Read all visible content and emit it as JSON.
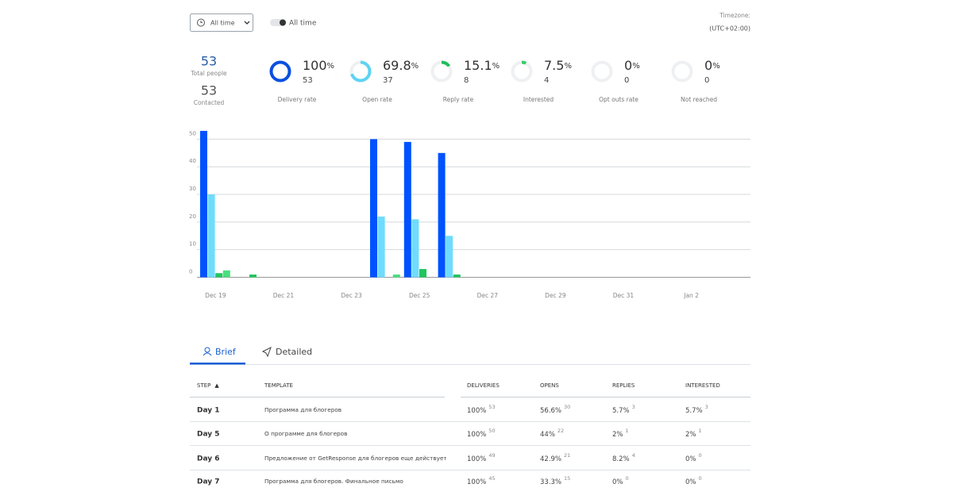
{
  "filters": {
    "period": "All time",
    "toggle_label": "All time",
    "timezone_label": "Timezone:",
    "timezone": "(UTC+02:00)"
  },
  "summary": [
    {
      "value": 53,
      "label": "Total people"
    },
    {
      "value": 53,
      "label": "Contacted"
    }
  ],
  "rates": {
    "unit": "%",
    "items": [
      {
        "percent": 100,
        "count": 53,
        "label": "Delivery rate",
        "color": "#0a4fe0"
      },
      {
        "percent": 69.8,
        "count": 37,
        "label": "Open rate",
        "color": "#5ed3f3"
      },
      {
        "percent": 15.1,
        "count": 8,
        "label": "Reply rate",
        "color": "#1fbf5a"
      },
      {
        "percent": 7.5,
        "count": 4,
        "label": "Interested",
        "color": "#3ec96a"
      },
      {
        "percent": 0,
        "count": 0,
        "label": "Opt outs rate",
        "color": "#9aa0a6"
      },
      {
        "percent": 0,
        "count": 0,
        "label": "Not reached",
        "color": "#9aa0a6"
      }
    ]
  },
  "chart_data": {
    "type": "bar",
    "categories": [
      "Dec 19",
      null,
      "Dec 21",
      null,
      "Dec 23",
      null,
      "Dec 25",
      null,
      "Dec 27",
      null,
      "Dec 29",
      null,
      "Dec 31",
      null,
      "Jan 2",
      null
    ],
    "series": [
      {
        "color": "#0052ff",
        "values": [
          53,
          0,
          0,
          0,
          0,
          50,
          49,
          45,
          0,
          0,
          0,
          0,
          0,
          0,
          0,
          0
        ]
      },
      {
        "color": "#6fdcff",
        "values": [
          30,
          0,
          0,
          0,
          0,
          22,
          21,
          15,
          0,
          0,
          0,
          0,
          0,
          0,
          0,
          0
        ]
      },
      {
        "color": "#22c55e",
        "values": [
          1.5,
          1,
          0,
          0,
          0,
          0,
          3,
          1,
          0,
          0,
          0,
          0,
          0,
          0,
          0,
          0
        ]
      },
      {
        "color": "#4ade80",
        "values": [
          2.5,
          0,
          0,
          0,
          0,
          1,
          0,
          0,
          0,
          0,
          0,
          0,
          0,
          0,
          0,
          0
        ]
      }
    ],
    "ylim": [
      0,
      55
    ],
    "yticks": [
      0,
      10,
      20,
      30,
      40,
      50
    ],
    "grid": true
  },
  "tabs": [
    "Brief",
    "Detailed"
  ],
  "table": {
    "sort_indicator": "▲",
    "columns": [
      "STEP",
      "TEMPLATE",
      "DELIVERIES",
      "OPENS",
      "REPLIES",
      "INTERESTED"
    ],
    "rows": [
      {
        "step": "Day 1",
        "template": "Программа для блогеров",
        "cells": [
          {
            "pct": "100%",
            "count": "53"
          },
          {
            "pct": "56.6%",
            "count": "30"
          },
          {
            "pct": "5.7%",
            "count": "3"
          },
          {
            "pct": "5.7%",
            "count": "3"
          }
        ]
      },
      {
        "step": "Day 5",
        "template": "О программе для блогеров",
        "cells": [
          {
            "pct": "100%",
            "count": "50"
          },
          {
            "pct": "44%",
            "count": "22"
          },
          {
            "pct": "2%",
            "count": "1"
          },
          {
            "pct": "2%",
            "count": "1"
          }
        ]
      },
      {
        "step": "Day 6",
        "template": "Предложение от GetResponse для блогеров еще действует",
        "cells": [
          {
            "pct": "100%",
            "count": "49"
          },
          {
            "pct": "42.9%",
            "count": "21"
          },
          {
            "pct": "8.2%",
            "count": "4"
          },
          {
            "pct": "0%",
            "count": "0"
          }
        ]
      },
      {
        "step": "Day 7",
        "template": "Программа для блогеров. Финальное письмо",
        "cells": [
          {
            "pct": "100%",
            "count": "45"
          },
          {
            "pct": "33.3%",
            "count": "15"
          },
          {
            "pct": "0%",
            "count": "0"
          },
          {
            "pct": "0%",
            "count": "0"
          }
        ]
      }
    ]
  }
}
